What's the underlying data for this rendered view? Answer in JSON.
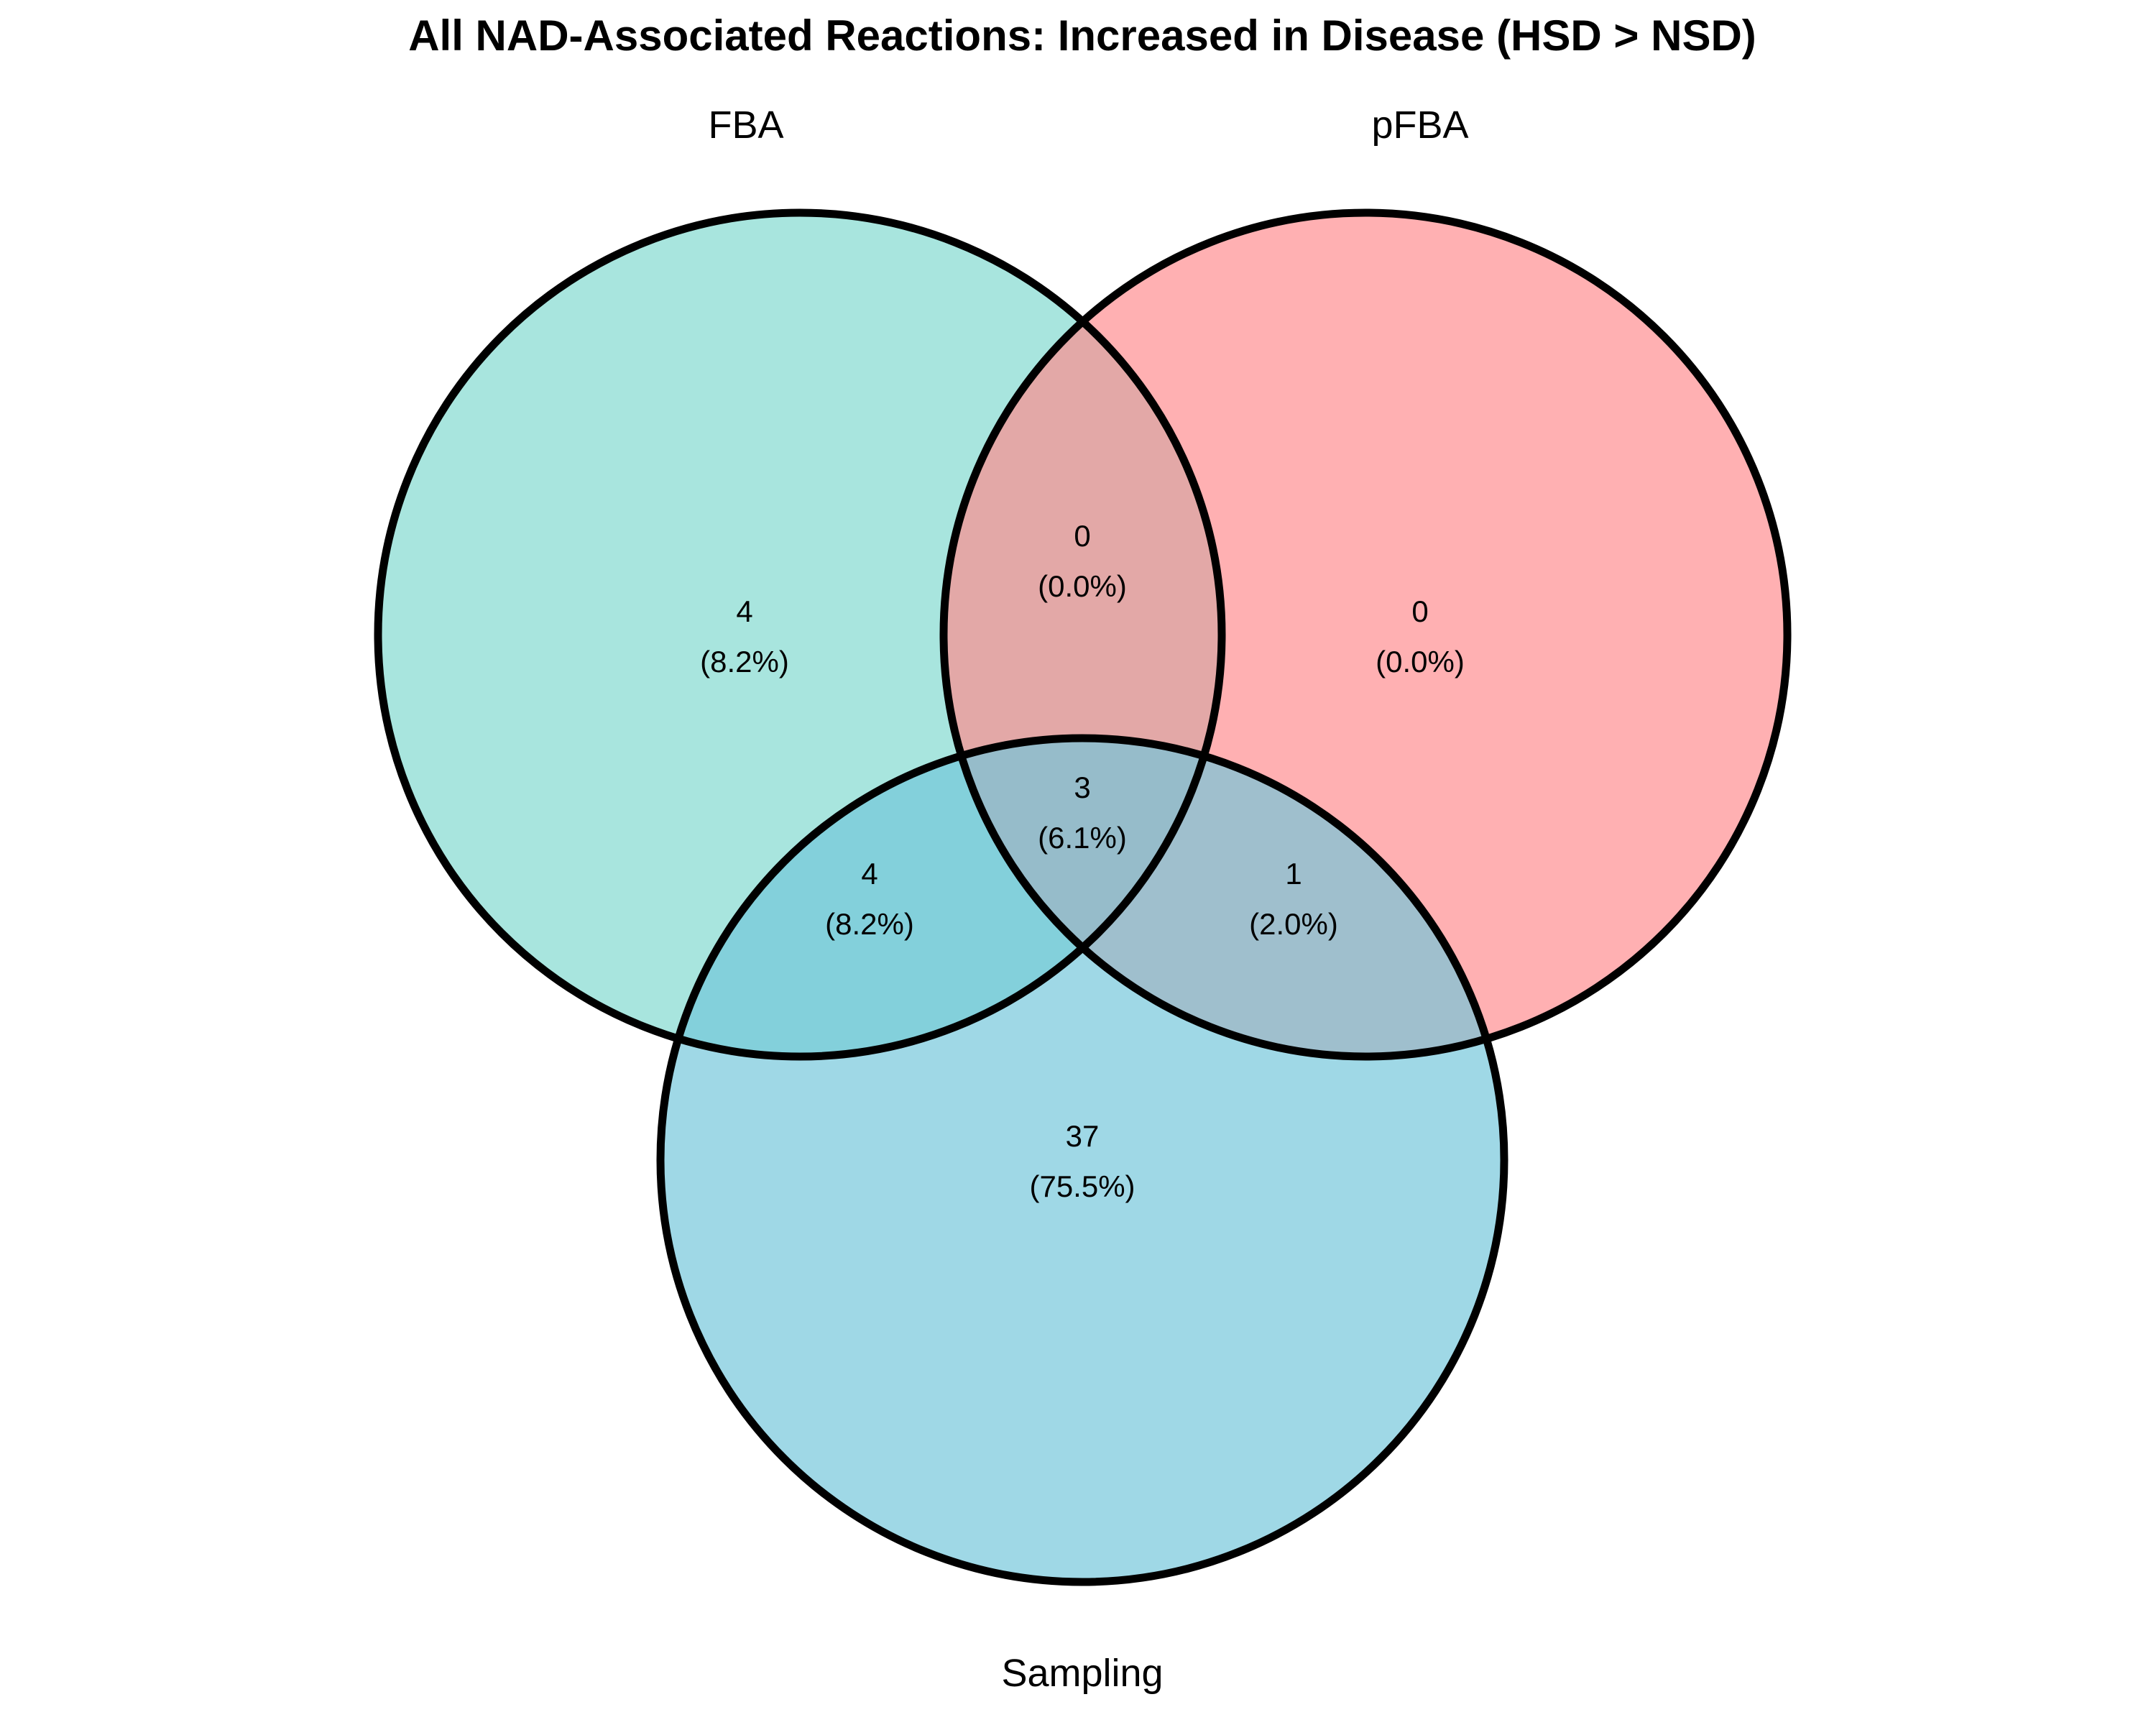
{
  "chart_data": {
    "type": "venn",
    "title": "All NAD-Associated Reactions: Increased in Disease (HSD > NSD)",
    "sets": [
      {
        "key": "fba",
        "name": "FBA",
        "color": "#7fd8ce"
      },
      {
        "key": "pfba",
        "name": "pFBA",
        "color": "#ff8a8d"
      },
      {
        "key": "sampling",
        "name": "Sampling",
        "color": "#72c6da"
      }
    ],
    "regions": [
      {
        "key": "fba_only",
        "sets": [
          "FBA"
        ],
        "count": "4",
        "percent": "(8.2%)"
      },
      {
        "key": "fba_pfba",
        "sets": [
          "FBA",
          "pFBA"
        ],
        "count": "0",
        "percent": "(0.0%)"
      },
      {
        "key": "pfba_only",
        "sets": [
          "pFBA"
        ],
        "count": "0",
        "percent": "(0.0%)"
      },
      {
        "key": "all",
        "sets": [
          "FBA",
          "pFBA",
          "Sampling"
        ],
        "count": "3",
        "percent": "(6.1%)"
      },
      {
        "key": "fba_sampling",
        "sets": [
          "FBA",
          "Sampling"
        ],
        "count": "4",
        "percent": "(8.2%)"
      },
      {
        "key": "pfba_sampling",
        "sets": [
          "pFBA",
          "Sampling"
        ],
        "count": "1",
        "percent": "(2.0%)"
      },
      {
        "key": "sampling_only",
        "sets": [
          "Sampling"
        ],
        "count": "37",
        "percent": "(75.5%)"
      }
    ]
  }
}
